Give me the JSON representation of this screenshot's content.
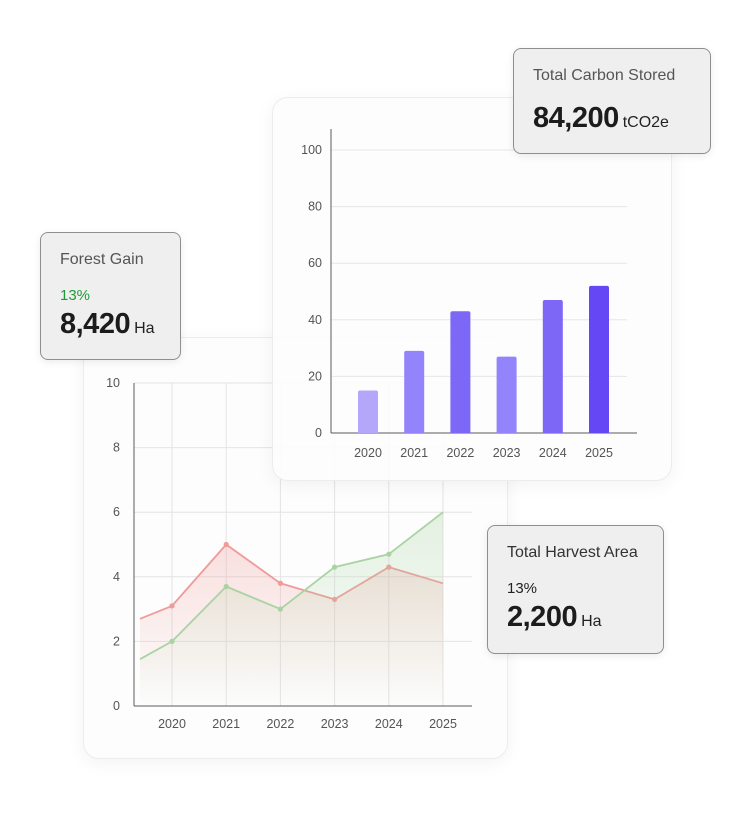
{
  "chart_data": [
    {
      "type": "line",
      "x": [
        "2020",
        "2021",
        "2022",
        "2023",
        "2024",
        "2025"
      ],
      "series": [
        {
          "color": "#f09a9a",
          "values": [
            3.1,
            5.0,
            3.8,
            3.3,
            4.3,
            3.8
          ],
          "start": 2.7
        },
        {
          "color": "#a9d3a2",
          "values": [
            2.0,
            3.7,
            3.0,
            4.3,
            4.7,
            6.0
          ],
          "start": 1.45
        }
      ],
      "ylim": [
        0,
        10
      ],
      "yticks": [
        "0",
        "2",
        "4",
        "6",
        "8",
        "10"
      ],
      "grid": true
    },
    {
      "type": "bar",
      "categories": [
        "2020",
        "2021",
        "2022",
        "2023",
        "2024",
        "2025"
      ],
      "values": [
        15,
        29,
        43,
        27,
        47,
        52
      ],
      "colors": [
        "#b3a6fb",
        "#9484fb",
        "#7c67f7",
        "#9484fb",
        "#7c67f7",
        "#6647f6"
      ],
      "ylim": [
        0,
        100
      ],
      "yticks": [
        "0",
        "20",
        "40",
        "60",
        "80",
        "100"
      ],
      "grid": true
    }
  ],
  "cards": {
    "carbon": {
      "title": "Total Carbon Stored",
      "value": "84,200",
      "unit": "tCO2e"
    },
    "forest": {
      "title": "Forest Gain",
      "percent": "13%",
      "value": "8,420",
      "unit": "Ha"
    },
    "harvest": {
      "title": "Total Harvest Area",
      "percent": "13%",
      "value": "2,200",
      "unit": "Ha"
    }
  }
}
